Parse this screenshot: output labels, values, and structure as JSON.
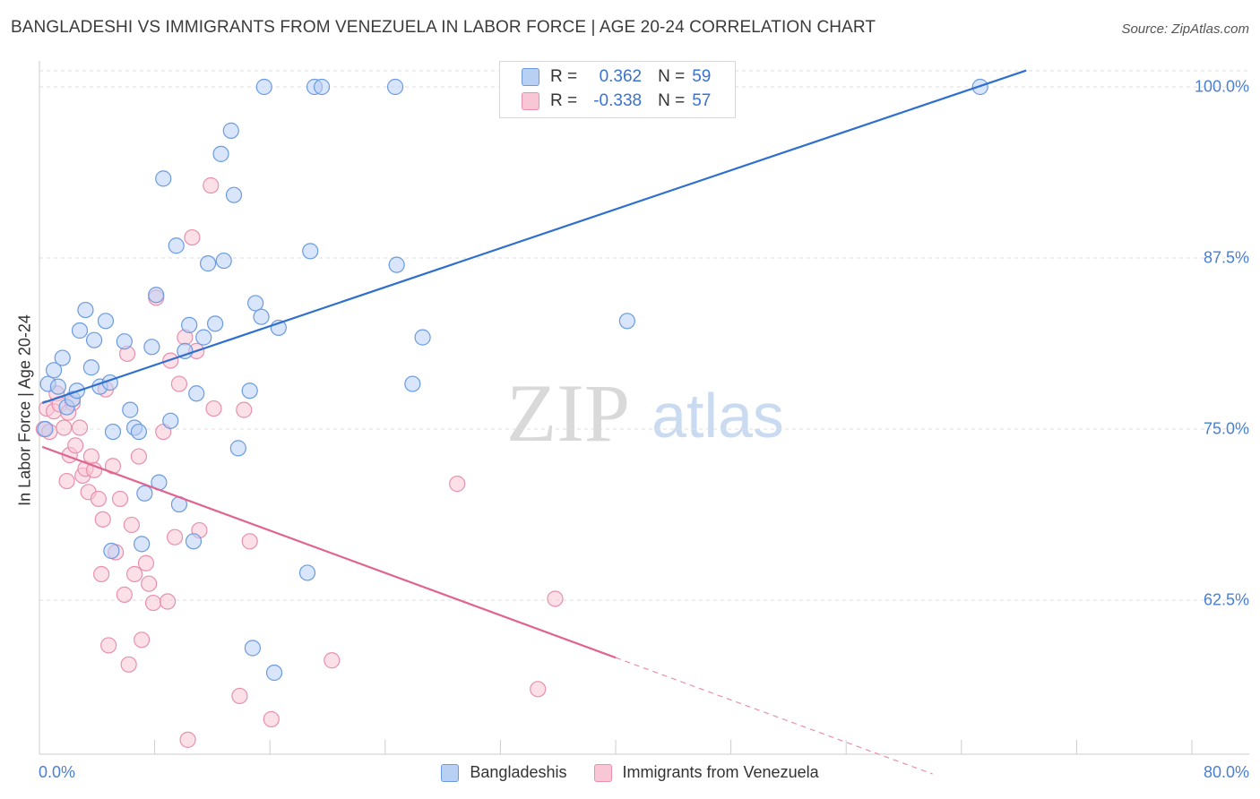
{
  "title": "BANGLADESHI VS IMMIGRANTS FROM VENEZUELA IN LABOR FORCE | AGE 20-24 CORRELATION CHART",
  "source": "Source: ZipAtlas.com",
  "watermark": {
    "zip": "ZIP",
    "atlas": "atlas"
  },
  "legend_top": {
    "rows": [
      {
        "r_label": "R =",
        "r_value": "0.362",
        "n_label": "N =",
        "n_value": "59",
        "color": "#6a9be0"
      },
      {
        "r_label": "R =",
        "r_value": "-0.338",
        "n_label": "N =",
        "n_value": "57",
        "color": "#e890ad"
      }
    ]
  },
  "chart_data": {
    "type": "scatter",
    "title": "BANGLADESHI VS IMMIGRANTS FROM VENEZUELA IN LABOR FORCE | AGE 20-24 CORRELATION CHART",
    "xlabel": "",
    "ylabel": "In Labor Force | Age 20-24",
    "xlim": [
      0,
      80
    ],
    "ylim": [
      50,
      101.2
    ],
    "x_tick_labels": [
      "0.0%",
      "80.0%"
    ],
    "y_ticks": [
      62.5,
      75.0,
      87.5,
      100.0
    ],
    "y_tick_labels": [
      "62.5%",
      "75.0%",
      "87.5%",
      "100.0%"
    ],
    "grid": true,
    "legend_position": "bottom",
    "series": [
      {
        "name": "Bangladeshis",
        "color": "#6a9be0",
        "fill": "#b9d0f5",
        "trend": {
          "x": [
            0.2,
            68.5
          ],
          "y": [
            76.9,
            101.2
          ]
        },
        "points": [
          [
            0.4,
            75.0
          ],
          [
            0.6,
            78.3
          ],
          [
            1.0,
            79.3
          ],
          [
            1.3,
            78.1
          ],
          [
            1.6,
            80.2
          ],
          [
            1.9,
            76.6
          ],
          [
            2.3,
            77.2
          ],
          [
            2.6,
            77.8
          ],
          [
            2.8,
            82.2
          ],
          [
            3.2,
            83.7
          ],
          [
            3.6,
            79.5
          ],
          [
            3.8,
            81.5
          ],
          [
            4.2,
            78.1
          ],
          [
            4.6,
            82.9
          ],
          [
            4.9,
            78.4
          ],
          [
            5.1,
            74.8
          ],
          [
            5.9,
            81.4
          ],
          [
            6.3,
            76.4
          ],
          [
            6.6,
            75.1
          ],
          [
            6.9,
            74.8
          ],
          [
            7.1,
            66.6
          ],
          [
            7.3,
            70.3
          ],
          [
            7.8,
            81.0
          ],
          [
            8.1,
            84.8
          ],
          [
            8.3,
            71.1
          ],
          [
            8.6,
            93.3
          ],
          [
            9.1,
            75.6
          ],
          [
            9.5,
            88.4
          ],
          [
            9.7,
            69.5
          ],
          [
            10.1,
            80.7
          ],
          [
            10.4,
            82.6
          ],
          [
            10.7,
            66.8
          ],
          [
            10.9,
            77.6
          ],
          [
            11.4,
            81.7
          ],
          [
            11.7,
            87.1
          ],
          [
            12.2,
            82.7
          ],
          [
            12.6,
            95.1
          ],
          [
            12.8,
            87.3
          ],
          [
            13.3,
            96.8
          ],
          [
            13.5,
            92.1
          ],
          [
            13.8,
            73.6
          ],
          [
            14.6,
            77.8
          ],
          [
            14.8,
            59.0
          ],
          [
            15.0,
            84.2
          ],
          [
            15.4,
            83.2
          ],
          [
            15.6,
            100.0
          ],
          [
            16.3,
            57.2
          ],
          [
            16.6,
            82.4
          ],
          [
            18.6,
            64.5
          ],
          [
            18.8,
            88.0
          ],
          [
            19.1,
            100.0
          ],
          [
            19.6,
            100.0
          ],
          [
            24.7,
            100.0
          ],
          [
            24.8,
            87.0
          ],
          [
            25.9,
            78.3
          ],
          [
            26.6,
            81.7
          ],
          [
            40.8,
            82.9
          ],
          [
            65.3,
            100.0
          ],
          [
            5.0,
            66.1
          ]
        ]
      },
      {
        "name": "Immigrants from Venezuela",
        "color": "#e890ad",
        "fill": "#f9c6d6",
        "trend": {
          "x": [
            0.2,
            40.0
          ],
          "y": [
            73.7,
            58.3
          ]
        },
        "trend_dashed": {
          "x": [
            40.0,
            62.0
          ],
          "y": [
            58.3,
            49.8
          ]
        },
        "points": [
          [
            0.3,
            75.0
          ],
          [
            0.5,
            76.5
          ],
          [
            0.7,
            74.8
          ],
          [
            1.0,
            76.3
          ],
          [
            1.2,
            77.6
          ],
          [
            1.4,
            76.8
          ],
          [
            1.7,
            75.1
          ],
          [
            1.9,
            71.2
          ],
          [
            2.1,
            73.1
          ],
          [
            2.3,
            76.9
          ],
          [
            2.5,
            73.8
          ],
          [
            2.8,
            75.1
          ],
          [
            3.0,
            71.6
          ],
          [
            3.2,
            72.1
          ],
          [
            3.4,
            70.4
          ],
          [
            3.6,
            73.0
          ],
          [
            3.8,
            72.0
          ],
          [
            4.1,
            69.9
          ],
          [
            4.3,
            64.4
          ],
          [
            4.6,
            77.9
          ],
          [
            4.8,
            59.2
          ],
          [
            5.1,
            72.3
          ],
          [
            5.3,
            66.0
          ],
          [
            5.6,
            69.9
          ],
          [
            5.9,
            62.9
          ],
          [
            6.2,
            57.8
          ],
          [
            6.4,
            68.0
          ],
          [
            6.6,
            64.4
          ],
          [
            6.9,
            73.0
          ],
          [
            7.1,
            59.6
          ],
          [
            7.4,
            65.2
          ],
          [
            7.6,
            63.7
          ],
          [
            7.9,
            62.3
          ],
          [
            8.1,
            84.6
          ],
          [
            8.6,
            74.8
          ],
          [
            8.9,
            62.4
          ],
          [
            9.1,
            80.0
          ],
          [
            9.4,
            67.1
          ],
          [
            9.7,
            78.3
          ],
          [
            10.1,
            81.7
          ],
          [
            10.3,
            52.3
          ],
          [
            10.6,
            89.0
          ],
          [
            10.9,
            80.7
          ],
          [
            11.1,
            67.6
          ],
          [
            11.9,
            92.8
          ],
          [
            12.1,
            76.5
          ],
          [
            13.9,
            55.5
          ],
          [
            14.2,
            76.4
          ],
          [
            14.6,
            66.8
          ],
          [
            16.1,
            53.8
          ],
          [
            20.3,
            58.1
          ],
          [
            29.0,
            71.0
          ],
          [
            34.6,
            56.0
          ],
          [
            35.8,
            62.6
          ],
          [
            6.1,
            80.5
          ],
          [
            4.4,
            68.4
          ],
          [
            2.0,
            76.2
          ]
        ]
      }
    ]
  }
}
